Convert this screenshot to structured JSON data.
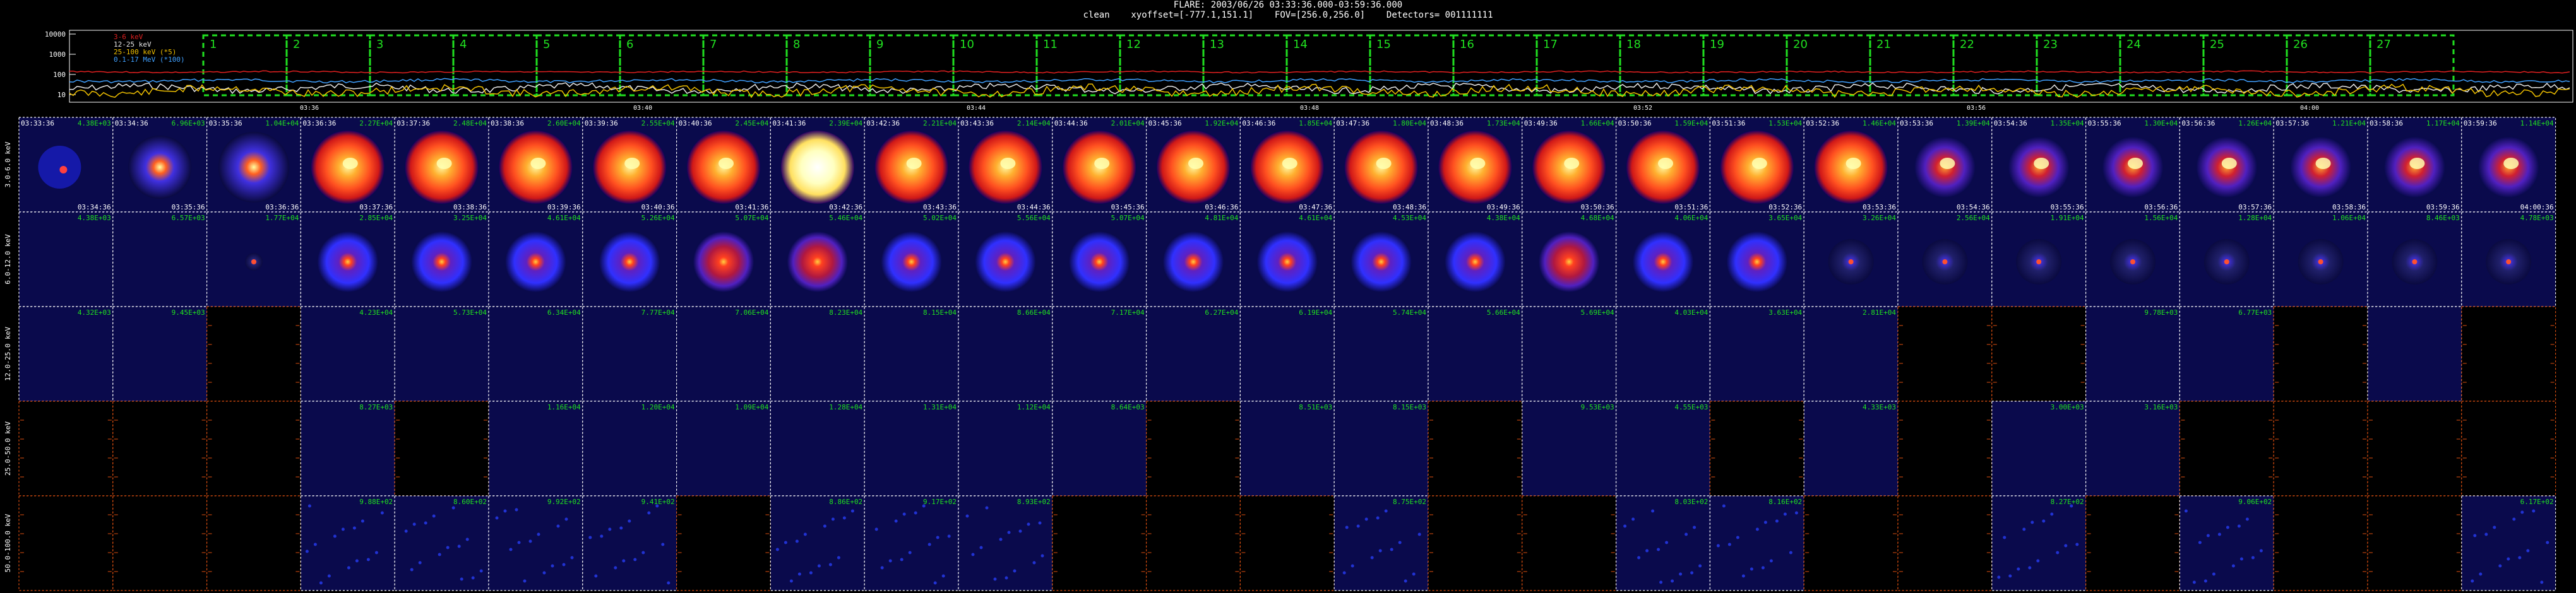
{
  "header": {
    "title": "FLARE: 2003/06/26 03:33:36.000-03:59:36.000",
    "subtitle": "clean    xyoffset=[-777.1,151.1]    FOV=[256.0,256.0]    Detectors= 001111111"
  },
  "lightcurve": {
    "yticks": [
      "10000",
      "1000",
      "100",
      "10"
    ],
    "legend": [
      {
        "label": "3-6 keV",
        "color": "#e02020"
      },
      {
        "label": "12-25 keV",
        "color": "#e8e8e8"
      },
      {
        "label": "25-100 keV (*5)",
        "color": "#f0c000"
      },
      {
        "label": "0.1-17 MeV (*100)",
        "color": "#40a0ff"
      }
    ],
    "interval_labels": [
      "1",
      "2",
      "3",
      "4",
      "5",
      "6",
      "7",
      "8",
      "9",
      "10",
      "11",
      "12",
      "13",
      "14",
      "15",
      "16",
      "17",
      "18",
      "19",
      "20",
      "21",
      "22",
      "23",
      "24",
      "25",
      "26",
      "27"
    ],
    "xticks": [
      "03:36",
      "03:40",
      "03:44",
      "03:48",
      "03:52",
      "03:56",
      "04:00"
    ],
    "box_color": "#20e020"
  },
  "grid": {
    "energy_bands": [
      "3.0-6.0 keV",
      "6.0-12.0 keV",
      "12.0-25.0 keV",
      "25.0-50.0 keV",
      "50.0-100.0 keV"
    ],
    "start_times": [
      "03:33:36",
      "03:34:36",
      "03:35:36",
      "03:36:36",
      "03:37:36",
      "03:38:36",
      "03:39:36",
      "03:40:36",
      "03:41:36",
      "03:42:36",
      "03:43:36",
      "03:44:36",
      "03:45:36",
      "03:46:36",
      "03:47:36",
      "03:48:36",
      "03:49:36",
      "03:50:36",
      "03:51:36",
      "03:52:36",
      "03:53:36",
      "03:54:36",
      "03:55:36",
      "03:56:36",
      "03:57:36",
      "03:58:36",
      "03:59:36"
    ],
    "end_times": [
      "03:34:36",
      "03:35:36",
      "03:36:36",
      "03:37:36",
      "03:38:36",
      "03:39:36",
      "03:40:36",
      "03:41:36",
      "03:42:36",
      "03:43:36",
      "03:44:36",
      "03:45:36",
      "03:46:36",
      "03:47:36",
      "03:48:36",
      "03:49:36",
      "03:50:36",
      "03:51:36",
      "03:52:36",
      "03:53:36",
      "03:54:36",
      "03:55:36",
      "03:56:36",
      "03:57:36",
      "03:58:36",
      "03:59:36",
      "04:00:36"
    ],
    "rows": [
      {
        "peaks": [
          "4.38E+03",
          "6.96E+03",
          "1.04E+04",
          "2.27E+04",
          "2.48E+04",
          "2.60E+04",
          "2.55E+04",
          "2.45E+04",
          "2.39E+04",
          "2.21E+04",
          "2.14E+04",
          "2.01E+04",
          "1.92E+04",
          "1.85E+04",
          "1.80E+04",
          "1.73E+04",
          "1.66E+04",
          "1.59E+04",
          "1.53E+04",
          "1.46E+04",
          "1.39E+04",
          "1.35E+04",
          "1.30E+04",
          "1.26E+04",
          "1.21E+04",
          "1.17E+04",
          "1.14E+04"
        ],
        "images": [
          "sparse",
          "small",
          "core",
          "disk",
          "disk",
          "disk",
          "disk",
          "disk",
          "bright",
          "disk",
          "disk",
          "disk",
          "disk",
          "disk",
          "disk",
          "disk",
          "disk",
          "disk",
          "disk",
          "disk",
          "dim",
          "dim",
          "dim",
          "dim",
          "dim",
          "dim",
          "dim"
        ]
      },
      {
        "peaks": [
          "4.38E+03",
          "6.57E+03",
          "1.77E+04",
          "2.85E+04",
          "3.25E+04",
          "4.61E+04",
          "5.26E+04",
          "5.07E+04",
          "5.46E+04",
          "5.02E+04",
          "5.56E+04",
          "5.07E+04",
          "4.81E+04",
          "4.61E+04",
          "4.53E+04",
          "4.38E+04",
          "4.68E+04",
          "4.06E+04",
          "3.65E+04",
          "3.26E+04",
          "2.56E+04",
          "1.91E+04",
          "1.56E+04",
          "1.28E+04",
          "1.06E+04",
          "8.46E+03",
          "4.78E+03"
        ],
        "images": [
          "empty",
          "empty",
          "tiny",
          "blue",
          "blue",
          "blue",
          "blue",
          "red",
          "red",
          "blue",
          "blue",
          "blue",
          "blue",
          "blue",
          "blue",
          "blue",
          "red",
          "blue",
          "blue",
          "faint",
          "faint",
          "faint",
          "faint",
          "faint",
          "faint",
          "faint",
          "faint"
        ]
      },
      {
        "peaks": [
          "4.32E+03",
          "9.45E+03",
          "",
          "4.23E+04",
          "5.73E+04",
          "6.34E+04",
          "7.77E+04",
          "7.06E+04",
          "8.23E+04",
          "8.15E+04",
          "8.66E+04",
          "7.17E+04",
          "6.27E+04",
          "6.19E+04",
          "5.74E+04",
          "5.66E+04",
          "5.69E+04",
          "4.03E+04",
          "3.63E+04",
          "2.81E+04",
          "",
          "",
          "9.78E+03",
          "6.77E+03",
          "",
          "",
          ""
        ],
        "images": [
          "empty",
          "empty",
          "black",
          "empty",
          "empty",
          "empty",
          "empty",
          "empty",
          "empty",
          "empty",
          "empty",
          "empty",
          "empty",
          "empty",
          "empty",
          "empty",
          "empty",
          "empty",
          "empty",
          "empty",
          "black",
          "black",
          "empty",
          "empty",
          "black",
          "empty",
          "black"
        ]
      },
      {
        "peaks": [
          "",
          "",
          "",
          "8.27E+03",
          "",
          "1.16E+04",
          "1.20E+04",
          "1.09E+04",
          "1.28E+04",
          "1.31E+04",
          "1.12E+04",
          "8.64E+03",
          "",
          "8.51E+03",
          "8.15E+03",
          "",
          "9.53E+03",
          "4.55E+03",
          "",
          "4.33E+03",
          "",
          "3.00E+03",
          "3.16E+03",
          "",
          "",
          "",
          ""
        ],
        "images": [
          "black",
          "black",
          "black",
          "empty",
          "black",
          "empty",
          "empty",
          "empty",
          "empty",
          "empty",
          "empty",
          "empty",
          "black",
          "empty",
          "empty",
          "black",
          "empty",
          "empty",
          "black",
          "empty",
          "black",
          "empty",
          "empty",
          "black",
          "black",
          "black",
          "black"
        ]
      },
      {
        "peaks": [
          "",
          "",
          "",
          "9.88E+02",
          "8.60E+02",
          "9.92E+02",
          "9.41E+02",
          "",
          "8.86E+02",
          "9.17E+02",
          "8.93E+02",
          "",
          "",
          "",
          "8.75E+02",
          "",
          "",
          "8.03E+02",
          "8.16E+02",
          "",
          "",
          "8.27E+02",
          "",
          "9.06E+02",
          "",
          "",
          "6.17E+02"
        ],
        "images": [
          "black",
          "black",
          "black",
          "noise",
          "noise",
          "noise",
          "noise",
          "black",
          "noise",
          "noise",
          "noise",
          "black",
          "black",
          "black",
          "noise",
          "black",
          "black",
          "noise",
          "noise",
          "black",
          "black",
          "noise",
          "black",
          "noise",
          "black",
          "black",
          "noise"
        ]
      }
    ]
  }
}
